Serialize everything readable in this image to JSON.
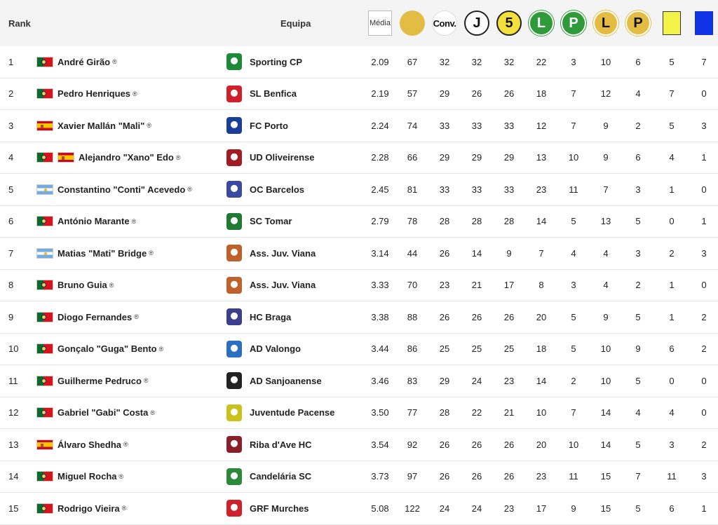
{
  "header": {
    "rank": "Rank",
    "team": "Equipa",
    "media": "Média",
    "conv": "Conv.",
    "j": "J",
    "five": "5",
    "l": "L",
    "p": "P",
    "l2": "L",
    "p2": "P"
  },
  "reg_mark": "®",
  "rows": [
    {
      "rank": "1",
      "flags": [
        "pt"
      ],
      "player": "André Girão",
      "team": "Sporting CP",
      "crest": "#1d8a3a",
      "media": "2.09",
      "c1": "67",
      "c2": "32",
      "c3": "32",
      "c4": "32",
      "c5": "22",
      "c6": "3",
      "c7": "10",
      "c8": "6",
      "c9": "5",
      "c10": "7"
    },
    {
      "rank": "2",
      "flags": [
        "pt"
      ],
      "player": "Pedro Henriques",
      "team": "SL Benfica",
      "crest": "#d0202a",
      "media": "2.19",
      "c1": "57",
      "c2": "29",
      "c3": "26",
      "c4": "26",
      "c5": "18",
      "c6": "7",
      "c7": "12",
      "c8": "4",
      "c9": "7",
      "c10": "0"
    },
    {
      "rank": "3",
      "flags": [
        "es"
      ],
      "player": "Xavier Mallán \"Mali\"",
      "team": "FC Porto",
      "crest": "#1a3d9a",
      "media": "2.24",
      "c1": "74",
      "c2": "33",
      "c3": "33",
      "c4": "33",
      "c5": "12",
      "c6": "7",
      "c7": "9",
      "c8": "2",
      "c9": "5",
      "c10": "3"
    },
    {
      "rank": "4",
      "flags": [
        "pt",
        "es"
      ],
      "player": "Alejandro \"Xano\" Edo",
      "team": "UD Oliveirense",
      "crest": "#a31c24",
      "media": "2.28",
      "c1": "66",
      "c2": "29",
      "c3": "29",
      "c4": "29",
      "c5": "13",
      "c6": "10",
      "c7": "9",
      "c8": "6",
      "c9": "4",
      "c10": "1"
    },
    {
      "rank": "5",
      "flags": [
        "ar"
      ],
      "player": "Constantino \"Conti\" Acevedo",
      "team": "OC Barcelos",
      "crest": "#3a4aa0",
      "media": "2.45",
      "c1": "81",
      "c2": "33",
      "c3": "33",
      "c4": "33",
      "c5": "23",
      "c6": "11",
      "c7": "7",
      "c8": "3",
      "c9": "1",
      "c10": "0"
    },
    {
      "rank": "6",
      "flags": [
        "pt"
      ],
      "player": "António Marante",
      "team": "SC Tomar",
      "crest": "#1f7a34",
      "media": "2.79",
      "c1": "78",
      "c2": "28",
      "c3": "28",
      "c4": "28",
      "c5": "14",
      "c6": "5",
      "c7": "13",
      "c8": "5",
      "c9": "0",
      "c10": "1"
    },
    {
      "rank": "7",
      "flags": [
        "ar"
      ],
      "player": "Matias \"Mati\" Bridge",
      "team": "Ass. Juv. Viana",
      "crest": "#c0602a",
      "media": "3.14",
      "c1": "44",
      "c2": "26",
      "c3": "14",
      "c4": "9",
      "c5": "7",
      "c6": "4",
      "c7": "4",
      "c8": "3",
      "c9": "2",
      "c10": "3"
    },
    {
      "rank": "8",
      "flags": [
        "pt"
      ],
      "player": "Bruno Guia",
      "team": "Ass. Juv. Viana",
      "crest": "#c0602a",
      "media": "3.33",
      "c1": "70",
      "c2": "23",
      "c3": "21",
      "c4": "17",
      "c5": "8",
      "c6": "3",
      "c7": "4",
      "c8": "2",
      "c9": "1",
      "c10": "0"
    },
    {
      "rank": "9",
      "flags": [
        "pt"
      ],
      "player": "Diogo Fernandes",
      "team": "HC Braga",
      "crest": "#3b3f8c",
      "media": "3.38",
      "c1": "88",
      "c2": "26",
      "c3": "26",
      "c4": "26",
      "c5": "20",
      "c6": "5",
      "c7": "9",
      "c8": "5",
      "c9": "1",
      "c10": "2"
    },
    {
      "rank": "10",
      "flags": [
        "pt"
      ],
      "player": "Gonçalo \"Guga\" Bento",
      "team": "AD Valongo",
      "crest": "#2a6fc0",
      "media": "3.44",
      "c1": "86",
      "c2": "25",
      "c3": "25",
      "c4": "25",
      "c5": "18",
      "c6": "5",
      "c7": "10",
      "c8": "9",
      "c9": "6",
      "c10": "2"
    },
    {
      "rank": "11",
      "flags": [
        "pt"
      ],
      "player": "Guilherme Pedruco",
      "team": "AD Sanjoanense",
      "crest": "#222222",
      "media": "3.46",
      "c1": "83",
      "c2": "29",
      "c3": "24",
      "c4": "23",
      "c5": "14",
      "c6": "2",
      "c7": "10",
      "c8": "5",
      "c9": "0",
      "c10": "0"
    },
    {
      "rank": "12",
      "flags": [
        "pt"
      ],
      "player": "Gabriel \"Gabi\" Costa",
      "team": "Juventude Pacense",
      "crest": "#c9c21a",
      "media": "3.50",
      "c1": "77",
      "c2": "28",
      "c3": "22",
      "c4": "21",
      "c5": "10",
      "c6": "7",
      "c7": "14",
      "c8": "4",
      "c9": "4",
      "c10": "0"
    },
    {
      "rank": "13",
      "flags": [
        "es"
      ],
      "player": "Álvaro Shedha",
      "team": "Riba d'Ave HC",
      "crest": "#8a1f2a",
      "media": "3.54",
      "c1": "92",
      "c2": "26",
      "c3": "26",
      "c4": "26",
      "c5": "20",
      "c6": "10",
      "c7": "14",
      "c8": "5",
      "c9": "3",
      "c10": "2"
    },
    {
      "rank": "14",
      "flags": [
        "pt"
      ],
      "player": "Miguel Rocha",
      "team": "Candelária SC",
      "crest": "#2a8a3a",
      "media": "3.73",
      "c1": "97",
      "c2": "26",
      "c3": "26",
      "c4": "26",
      "c5": "23",
      "c6": "11",
      "c7": "15",
      "c8": "7",
      "c9": "11",
      "c10": "3"
    },
    {
      "rank": "15",
      "flags": [
        "pt"
      ],
      "player": "Rodrigo Vieira",
      "team": "GRF Murches",
      "crest": "#d0202a",
      "media": "5.08",
      "c1": "122",
      "c2": "24",
      "c3": "24",
      "c4": "23",
      "c5": "17",
      "c6": "9",
      "c7": "15",
      "c8": "5",
      "c9": "6",
      "c10": "1"
    }
  ]
}
